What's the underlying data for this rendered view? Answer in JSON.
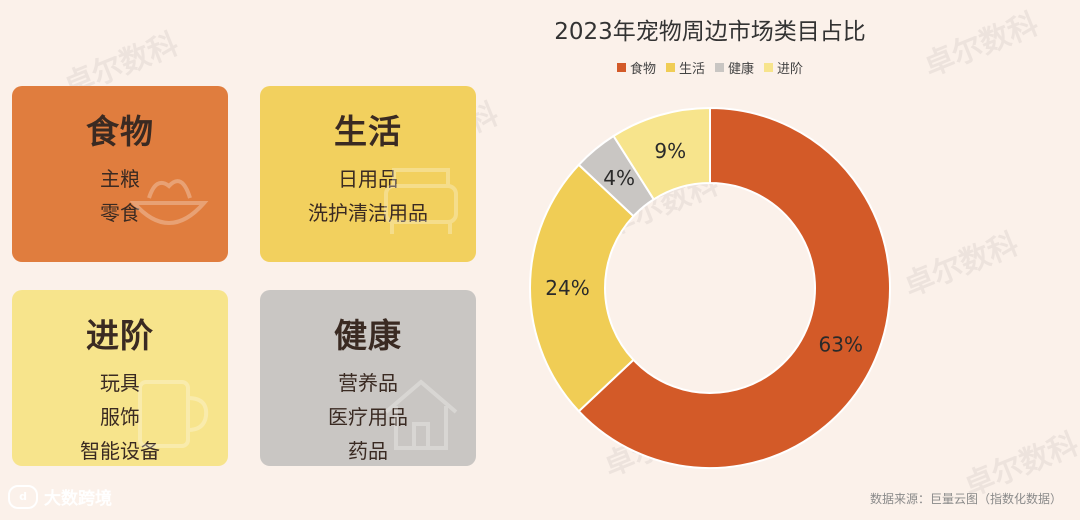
{
  "cards": {
    "food": {
      "title": "食物",
      "items": [
        "主粮",
        "零食"
      ],
      "color": "#e07d3e"
    },
    "life": {
      "title": "生活",
      "items": [
        "日用品",
        "洗护清洁用品"
      ],
      "color": "#f2d05e"
    },
    "adv": {
      "title": "进阶",
      "items": [
        "玩具",
        "服饰",
        "智能设备"
      ],
      "color": "#f7e48c"
    },
    "health": {
      "title": "健康",
      "items": [
        "营养品",
        "医疗用品",
        "药品"
      ],
      "color": "#c9c6c3"
    }
  },
  "chart_data": {
    "type": "pie",
    "title": "2023年宠物周边市场类目占比",
    "legend_position": "top",
    "categories": [
      "食物",
      "生活",
      "健康",
      "进阶"
    ],
    "values": [
      63,
      24,
      4,
      9
    ],
    "labels": [
      "63%",
      "24%",
      "4%",
      "9%"
    ],
    "colors": [
      "#d35a28",
      "#f0cd55",
      "#c9c6c3",
      "#f7e48c"
    ]
  },
  "footer": {
    "brand": "大数跨境",
    "source": "数据来源：巨量云图（指数化数据）"
  },
  "watermark": "卓尔数科"
}
